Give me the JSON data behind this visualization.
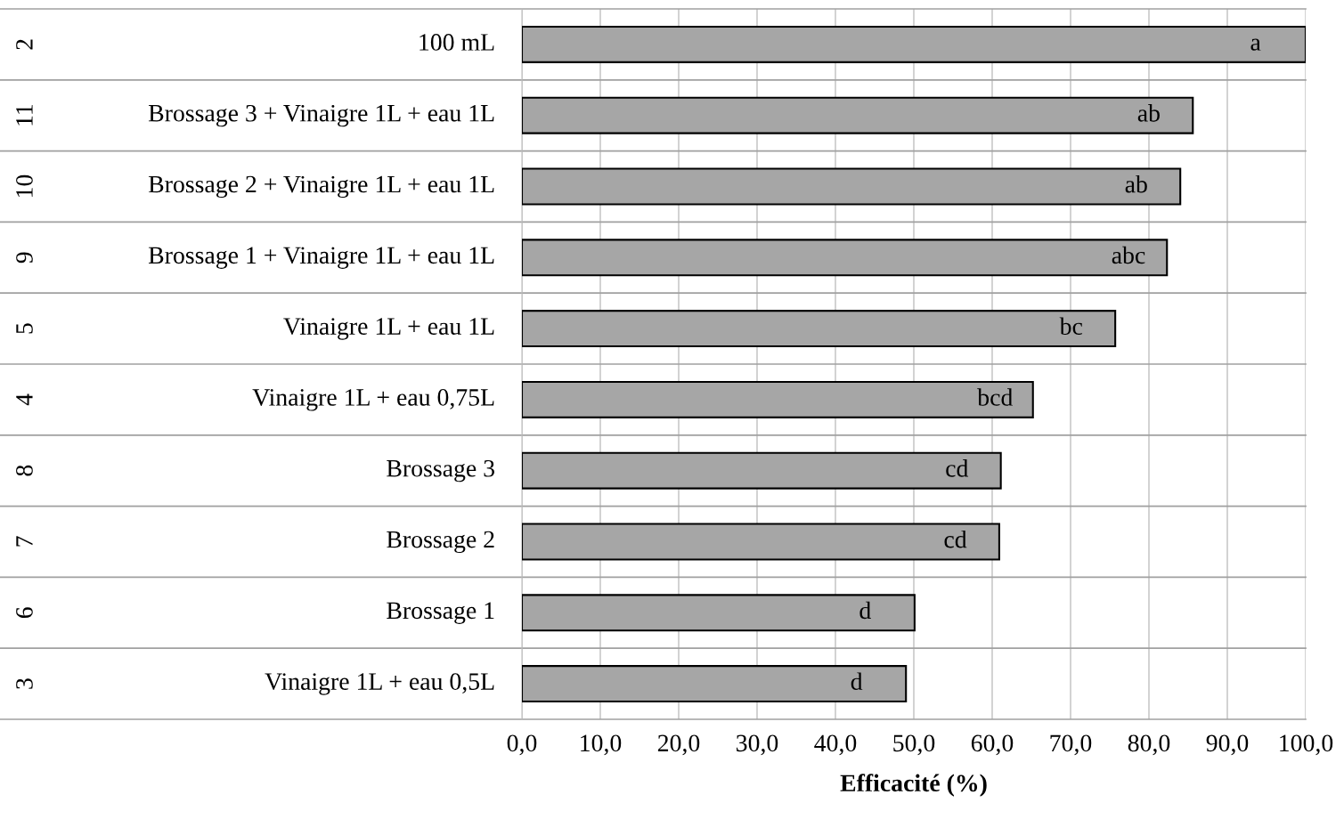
{
  "chart_data": {
    "type": "bar",
    "orientation": "horizontal",
    "xlabel": "Efficacité (%)",
    "categories": [
      "100 mL",
      "Brossage 3 + Vinaigre 1L + eau 1L",
      "Brossage 2 + Vinaigre 1L + eau 1L",
      "Brossage 1 + Vinaigre 1L + eau 1L",
      "Vinaigre 1L + eau 1L",
      "Vinaigre 1L + eau 0,75L",
      "Brossage 3",
      "Brossage 2",
      "Brossage 1",
      "Vinaigre 1L + eau 0,5L"
    ],
    "values": [
      100,
      85.6,
      84.0,
      82.3,
      75.7,
      65.2,
      61.1,
      60.9,
      50.1,
      49.0
    ],
    "value_labels": [
      "a",
      "ab",
      "ab",
      "abc",
      "bc",
      "bcd",
      "cd",
      "cd",
      "d",
      "d"
    ],
    "color": "#a6a6a6",
    "annotations": [
      "2",
      "11",
      "10",
      "9",
      "5",
      "4",
      "8",
      "7",
      "6",
      "3"
    ],
    "xlim": [
      0,
      100
    ],
    "xticks": [
      {
        "value": 0,
        "label": "0,0"
      },
      {
        "value": 10,
        "label": "10,0"
      },
      {
        "value": 20,
        "label": "20,0"
      },
      {
        "value": 30,
        "label": "30,0"
      },
      {
        "value": 40,
        "label": "40,0"
      },
      {
        "value": 50,
        "label": "50,0"
      },
      {
        "value": 60,
        "label": "60,0"
      },
      {
        "value": 70,
        "label": "70,0"
      },
      {
        "value": 80,
        "label": "80,0"
      },
      {
        "value": 90,
        "label": "90,0"
      },
      {
        "value": 100,
        "label": "100,0"
      }
    ],
    "grid": "x"
  }
}
